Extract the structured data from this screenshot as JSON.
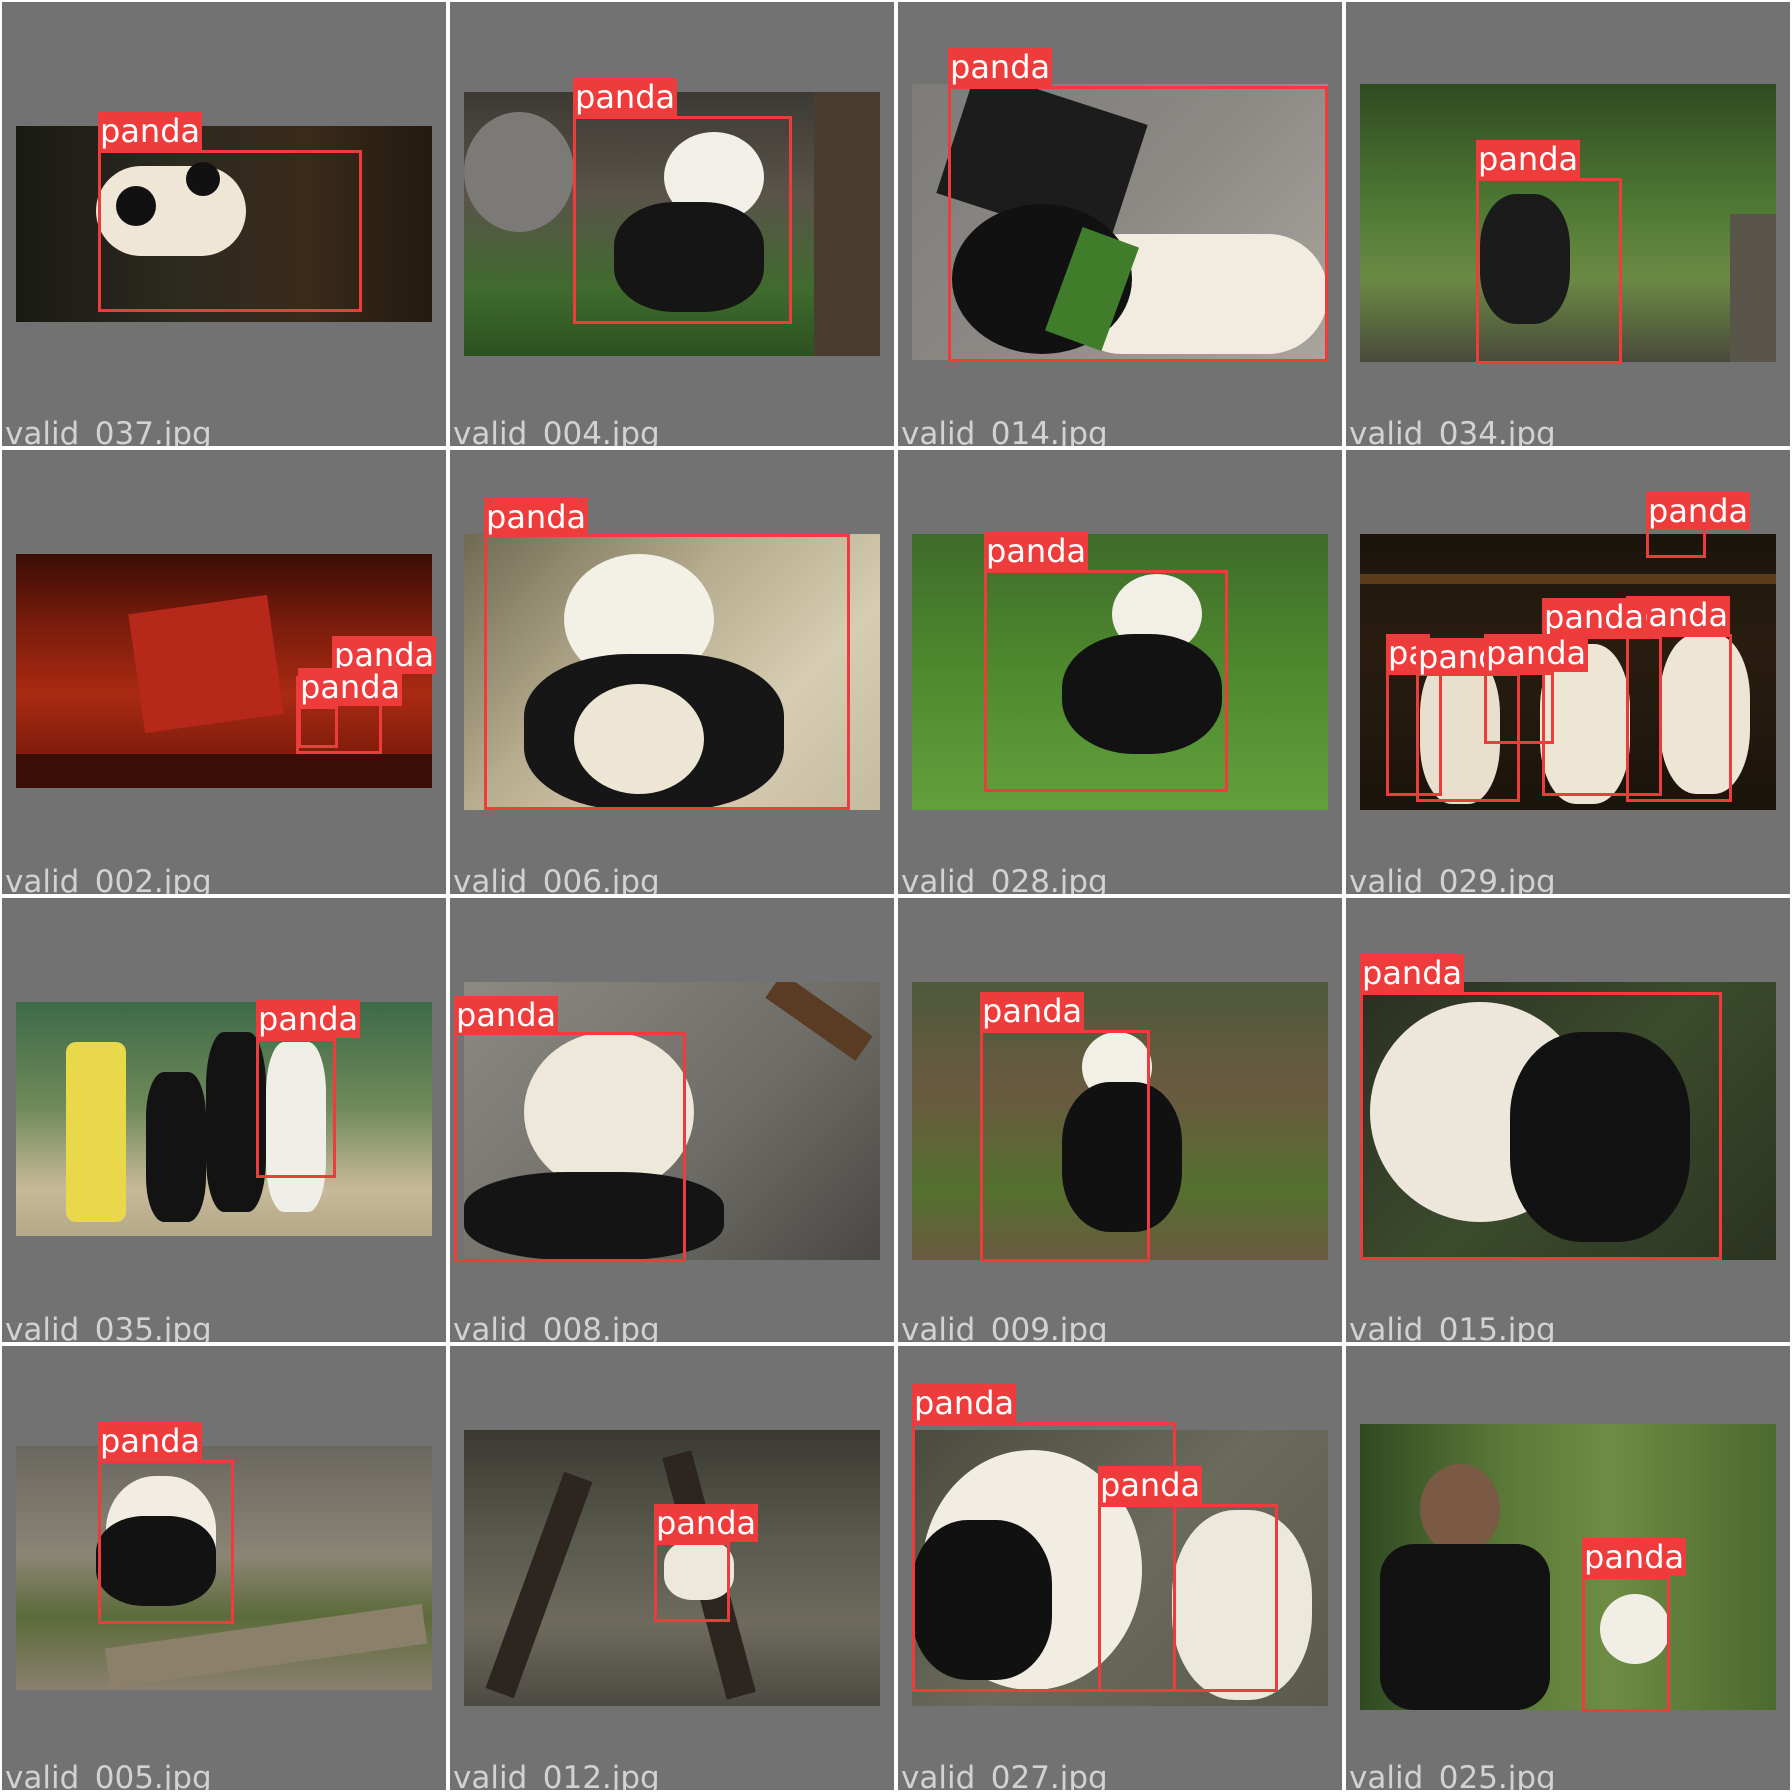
{
  "grid": {
    "background": "#727272",
    "box_color": "#ee3b3b",
    "label_text_color": "#ffffff",
    "filename_color": "#d2d2d2"
  },
  "tiles": [
    {
      "filename": "valid_037.jpg",
      "detections": [
        {
          "label": "panda"
        }
      ]
    },
    {
      "filename": "valid_004.jpg",
      "detections": [
        {
          "label": "panda"
        }
      ]
    },
    {
      "filename": "valid_014.jpg",
      "detections": [
        {
          "label": "panda"
        }
      ]
    },
    {
      "filename": "valid_034.jpg",
      "detections": [
        {
          "label": "panda"
        }
      ]
    },
    {
      "filename": "valid_002.jpg",
      "detections": [
        {
          "label": "panda"
        },
        {
          "label": "panda"
        }
      ]
    },
    {
      "filename": "valid_006.jpg",
      "detections": [
        {
          "label": "panda"
        }
      ]
    },
    {
      "filename": "valid_028.jpg",
      "detections": [
        {
          "label": "panda"
        }
      ]
    },
    {
      "filename": "valid_029.jpg",
      "detections": [
        {
          "label": "panda"
        },
        {
          "label": "panda"
        },
        {
          "label": "panda"
        },
        {
          "label": "pa"
        },
        {
          "label": "panda"
        },
        {
          "label": "panda"
        }
      ]
    },
    {
      "filename": "valid_035.jpg",
      "detections": [
        {
          "label": "panda"
        }
      ]
    },
    {
      "filename": "valid_008.jpg",
      "detections": [
        {
          "label": "panda"
        }
      ]
    },
    {
      "filename": "valid_009.jpg",
      "detections": [
        {
          "label": "panda"
        }
      ]
    },
    {
      "filename": "valid_015.jpg",
      "detections": [
        {
          "label": "panda"
        }
      ]
    },
    {
      "filename": "valid_005.jpg",
      "detections": [
        {
          "label": "panda"
        }
      ]
    },
    {
      "filename": "valid_012.jpg",
      "detections": [
        {
          "label": "panda"
        }
      ]
    },
    {
      "filename": "valid_027.jpg",
      "detections": [
        {
          "label": "panda"
        },
        {
          "label": "panda"
        }
      ]
    },
    {
      "filename": "valid_025.jpg",
      "detections": [
        {
          "label": "panda"
        }
      ]
    }
  ]
}
